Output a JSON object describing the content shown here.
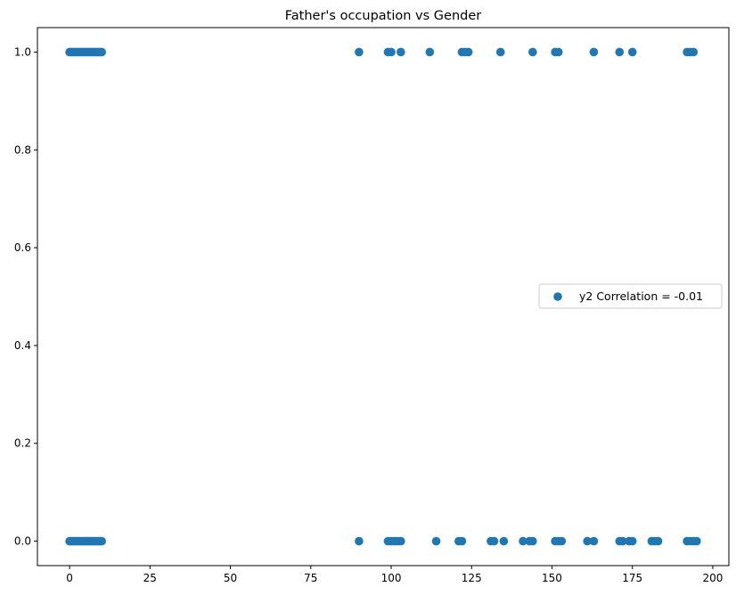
{
  "chart_data": {
    "type": "scatter",
    "title": "Father's occupation vs Gender",
    "xlabel": "",
    "ylabel": "",
    "xlim": [
      -10,
      205
    ],
    "ylim": [
      -0.05,
      1.05
    ],
    "x_ticks": [
      0,
      25,
      50,
      75,
      100,
      125,
      150,
      175,
      200
    ],
    "y_ticks": [
      0.0,
      0.2,
      0.4,
      0.6,
      0.8,
      1.0
    ],
    "x_tick_labels": [
      "0",
      "25",
      "50",
      "75",
      "100",
      "125",
      "150",
      "175",
      "200"
    ],
    "y_tick_labels": [
      "0.0",
      "0.2",
      "0.4",
      "0.6",
      "0.8",
      "1.0"
    ],
    "grid": false,
    "legend_position": "center-right",
    "series": [
      {
        "name": "y2 Correlation = -0.01",
        "color": "#1f77b4",
        "points": [
          [
            0,
            1
          ],
          [
            0.5,
            1
          ],
          [
            1,
            1
          ],
          [
            1.5,
            1
          ],
          [
            2,
            1
          ],
          [
            2.5,
            1
          ],
          [
            3,
            1
          ],
          [
            3.5,
            1
          ],
          [
            4,
            1
          ],
          [
            4.5,
            1
          ],
          [
            5,
            1
          ],
          [
            5.5,
            1
          ],
          [
            6,
            1
          ],
          [
            6.5,
            1
          ],
          [
            7,
            1
          ],
          [
            7.5,
            1
          ],
          [
            8,
            1
          ],
          [
            8.5,
            1
          ],
          [
            9,
            1
          ],
          [
            9.5,
            1
          ],
          [
            10,
            1
          ],
          [
            90,
            1
          ],
          [
            99,
            1
          ],
          [
            100,
            1
          ],
          [
            103,
            1
          ],
          [
            112,
            1
          ],
          [
            122,
            1
          ],
          [
            123,
            1
          ],
          [
            124,
            1
          ],
          [
            134,
            1
          ],
          [
            144,
            1
          ],
          [
            151,
            1
          ],
          [
            152,
            1
          ],
          [
            163,
            1
          ],
          [
            171,
            1
          ],
          [
            175,
            1
          ],
          [
            192,
            1
          ],
          [
            193,
            1
          ],
          [
            194,
            1
          ],
          [
            0,
            0
          ],
          [
            0.5,
            0
          ],
          [
            1,
            0
          ],
          [
            1.5,
            0
          ],
          [
            2,
            0
          ],
          [
            2.5,
            0
          ],
          [
            3,
            0
          ],
          [
            3.5,
            0
          ],
          [
            4,
            0
          ],
          [
            4.5,
            0
          ],
          [
            5,
            0
          ],
          [
            5.5,
            0
          ],
          [
            6,
            0
          ],
          [
            6.5,
            0
          ],
          [
            7,
            0
          ],
          [
            7.5,
            0
          ],
          [
            8,
            0
          ],
          [
            8.5,
            0
          ],
          [
            9,
            0
          ],
          [
            9.5,
            0
          ],
          [
            10,
            0
          ],
          [
            90,
            0
          ],
          [
            99,
            0
          ],
          [
            100,
            0
          ],
          [
            101,
            0
          ],
          [
            102,
            0
          ],
          [
            103,
            0
          ],
          [
            114,
            0
          ],
          [
            121,
            0
          ],
          [
            122,
            0
          ],
          [
            131,
            0
          ],
          [
            132,
            0
          ],
          [
            135,
            0
          ],
          [
            141,
            0
          ],
          [
            143,
            0
          ],
          [
            144,
            0
          ],
          [
            151,
            0
          ],
          [
            152,
            0
          ],
          [
            153,
            0
          ],
          [
            161,
            0
          ],
          [
            163,
            0
          ],
          [
            171,
            0
          ],
          [
            172,
            0
          ],
          [
            174,
            0
          ],
          [
            175,
            0
          ],
          [
            181,
            0
          ],
          [
            182,
            0
          ],
          [
            183,
            0
          ],
          [
            192,
            0
          ],
          [
            193,
            0
          ],
          [
            194,
            0
          ],
          [
            195,
            0
          ]
        ]
      }
    ]
  }
}
